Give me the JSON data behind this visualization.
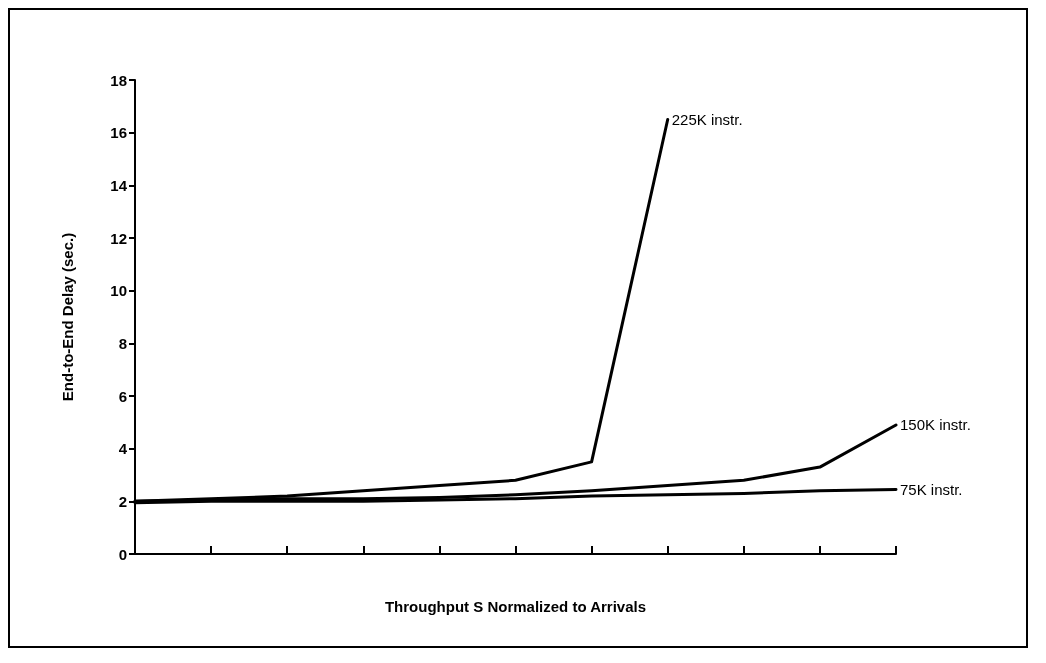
{
  "chart_data": {
    "type": "line",
    "xlabel": "Throughput S Normalized to Arrivals",
    "ylabel": "End-to-End Delay (sec.)",
    "categories": [
      null,
      null,
      null,
      null,
      null,
      null,
      null,
      null,
      null,
      null,
      null
    ],
    "series": [
      {
        "name": "225K instr.",
        "color": "#000000",
        "values": [
          2.0,
          2.1,
          2.2,
          2.4,
          2.6,
          2.8,
          3.5,
          16.5,
          null,
          null,
          null
        ]
      },
      {
        "name": "150K instr.",
        "color": "#000000",
        "values": [
          2.0,
          2.05,
          2.1,
          2.1,
          2.15,
          2.25,
          2.4,
          2.6,
          2.8,
          3.3,
          4.9
        ]
      },
      {
        "name": "75K instr.",
        "color": "#000000",
        "values": [
          1.95,
          2.0,
          2.0,
          2.0,
          2.05,
          2.1,
          2.2,
          2.25,
          2.3,
          2.4,
          2.45
        ]
      }
    ],
    "ylim": [
      0,
      18
    ],
    "yticks": [
      0,
      2,
      4,
      6,
      8,
      10,
      12,
      14,
      16,
      18
    ],
    "tick_labels": "y",
    "grid": false,
    "legend": false,
    "marker": "none",
    "line_style": "solid"
  }
}
